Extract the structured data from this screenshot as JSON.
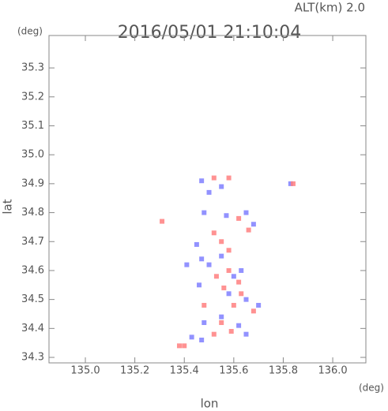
{
  "chart_data": {
    "type": "scatter",
    "title": "2016/05/01 21:10:04",
    "subtitle": "ALT(km) 2.0",
    "x_label": "lon",
    "y_label": "lat",
    "x_unit": "(deg)",
    "y_unit": "(deg)",
    "xlim": [
      134.853,
      136.134
    ],
    "ylim": [
      34.281,
      35.412
    ],
    "xticks": [
      {
        "value": 135.0,
        "label": "135.0"
      },
      135.2,
      135.4,
      135.6,
      135.8,
      {
        "value": 136.0,
        "label": "136.0"
      }
    ],
    "yticks": [
      34.3,
      34.4,
      34.5,
      34.6,
      34.7,
      34.8,
      34.9,
      {
        "value": 35.0,
        "label": "35.0"
      },
      35.1,
      35.2,
      35.3
    ],
    "series": [
      {
        "color": "#7f7fff",
        "x": [
          135.47,
          135.5,
          135.55,
          135.48,
          135.57,
          135.65,
          135.68,
          135.45,
          135.47,
          135.5,
          135.55,
          135.6,
          135.63,
          135.46,
          135.58,
          135.65,
          135.7,
          135.48,
          135.55,
          135.62,
          135.65,
          135.43,
          135.47,
          135.83,
          135.41
        ],
        "values": [
          34.91,
          34.87,
          34.89,
          34.8,
          34.79,
          34.8,
          34.76,
          34.69,
          34.64,
          34.62,
          34.65,
          34.58,
          34.6,
          34.55,
          34.52,
          34.5,
          34.48,
          34.42,
          34.44,
          34.41,
          34.38,
          34.37,
          34.36,
          34.9,
          34.62
        ]
      },
      {
        "color": "#ff7f7f",
        "x": [
          135.31,
          135.52,
          135.58,
          135.62,
          135.66,
          135.52,
          135.55,
          135.58,
          135.53,
          135.58,
          135.62,
          135.56,
          135.48,
          135.6,
          135.68,
          135.55,
          135.59,
          135.38,
          135.4,
          135.52,
          135.84,
          135.63
        ],
        "values": [
          34.77,
          34.92,
          34.92,
          34.78,
          34.74,
          34.73,
          34.7,
          34.67,
          34.58,
          34.6,
          34.56,
          34.54,
          34.48,
          34.48,
          34.46,
          34.42,
          34.39,
          34.34,
          34.34,
          34.38,
          34.9,
          34.52
        ]
      }
    ]
  }
}
